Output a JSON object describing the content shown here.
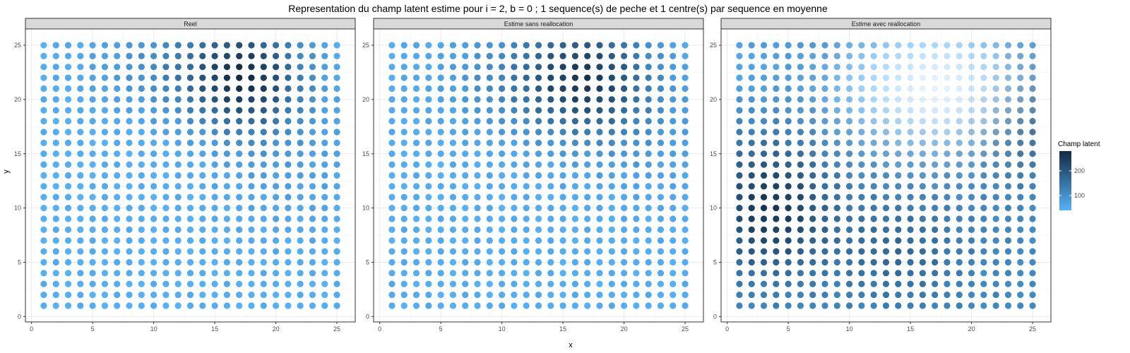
{
  "chart_data": {
    "type": "scatter",
    "title": "Representation du champ latent estime pour i = 2, b = 0 ; 1 sequence(s) de peche et 1 centre(s) par sequence en moyenne",
    "xlabel": "x",
    "ylabel": "y",
    "xlim": [
      -0.5,
      26.5
    ],
    "ylim": [
      -0.5,
      26.5
    ],
    "x_ticks": [
      0,
      5,
      10,
      15,
      20,
      25
    ],
    "y_ticks": [
      0,
      5,
      10,
      15,
      20,
      25
    ],
    "grid": true,
    "grid_x": [
      1,
      2,
      3,
      4,
      5,
      6,
      7,
      8,
      9,
      10,
      11,
      12,
      13,
      14,
      15,
      16,
      17,
      18,
      19,
      20,
      21,
      22,
      23,
      24,
      25
    ],
    "grid_y": [
      1,
      2,
      3,
      4,
      5,
      6,
      7,
      8,
      9,
      10,
      11,
      12,
      13,
      14,
      15,
      16,
      17,
      18,
      19,
      20,
      21,
      22,
      23,
      24,
      25
    ],
    "legend": {
      "title": "Champ latent",
      "placement": "right",
      "breaks": [
        100,
        200
      ],
      "labels": [
        "100",
        "200"
      ],
      "range": [
        40,
        280
      ],
      "low_color": "#56B1F7",
      "high_color": "#132B43"
    },
    "panels": [
      {
        "name": "Reel",
        "field": {
          "base": 45,
          "bumps": [
            {
              "x": 17.5,
              "y": 22,
              "amp": 220,
              "sx": 3.2,
              "sy": 3.3
            },
            {
              "x": 11,
              "y": 23,
              "amp": 55,
              "sx": 4,
              "sy": 3
            },
            {
              "x": 21,
              "y": 14,
              "amp": 25,
              "sx": 4,
              "sy": 4
            }
          ],
          "extra": []
        }
      },
      {
        "name": "Estime sans reallocation",
        "field": {
          "base": 48,
          "bumps": [
            {
              "x": 17,
              "y": 22,
              "amp": 190,
              "sx": 3.5,
              "sy": 3.5
            },
            {
              "x": 11,
              "y": 22,
              "amp": 55,
              "sx": 4,
              "sy": 3.5
            },
            {
              "x": 22,
              "y": 17,
              "amp": 25,
              "sx": 4,
              "sy": 4
            }
          ],
          "extra": []
        }
      },
      {
        "name": "Estime avec reallocation",
        "field": {
          "base": 110,
          "bumps": [
            {
              "x": 3.5,
              "y": 10,
              "amp": 150,
              "sx": 3.3,
              "sy": 4
            },
            {
              "x": 14,
              "y": 6,
              "amp": 60,
              "sx": 3.5,
              "sy": 3.5
            },
            {
              "x": 24,
              "y": 18,
              "amp": 80,
              "sx": 2.5,
              "sy": 3.5
            },
            {
              "x": 17.5,
              "y": 22.5,
              "amp": -100,
              "sx": 4,
              "sy": 3.3
            },
            {
              "x": 11,
              "y": 21.5,
              "amp": -40,
              "sx": 3,
              "sy": 2.5
            },
            {
              "x": 1.5,
              "y": 23,
              "amp": -50,
              "sx": 3,
              "sy": 3
            }
          ],
          "extra": [
            {
              "fade": true,
              "x": 17,
              "y": 21,
              "sx": 5,
              "sy": 4
            }
          ]
        }
      }
    ]
  }
}
